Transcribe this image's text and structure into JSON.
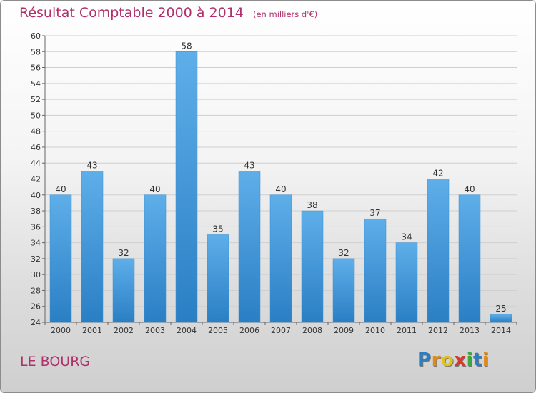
{
  "chart_data": {
    "type": "bar",
    "title": "Résultat Comptable 2000 à 2014",
    "subtitle": "(en milliers d'€)",
    "categories": [
      "2000",
      "2001",
      "2002",
      "2003",
      "2004",
      "2005",
      "2006",
      "2007",
      "2008",
      "2009",
      "2010",
      "2011",
      "2012",
      "2013",
      "2014"
    ],
    "values": [
      40,
      43,
      32,
      40,
      58,
      35,
      43,
      40,
      38,
      32,
      37,
      34,
      42,
      40,
      25
    ],
    "ylim": [
      24,
      60
    ],
    "ytick_step": 2,
    "grid": true,
    "xlabel": "",
    "ylabel": ""
  },
  "footer": {
    "place_name": "LE BOURG",
    "logo_letters": [
      "P",
      "r",
      "o",
      "x",
      "i",
      "t",
      "i"
    ]
  },
  "colors": {
    "bar_top": "#5eaee9",
    "bar_bottom": "#2a7fc4",
    "title": "#b0306a",
    "logo": [
      "#2a7fc4",
      "#e08a1e",
      "#e0c21e",
      "#d63a2a",
      "#3aaa3a",
      "#2a7fc4",
      "#e08a1e"
    ]
  }
}
